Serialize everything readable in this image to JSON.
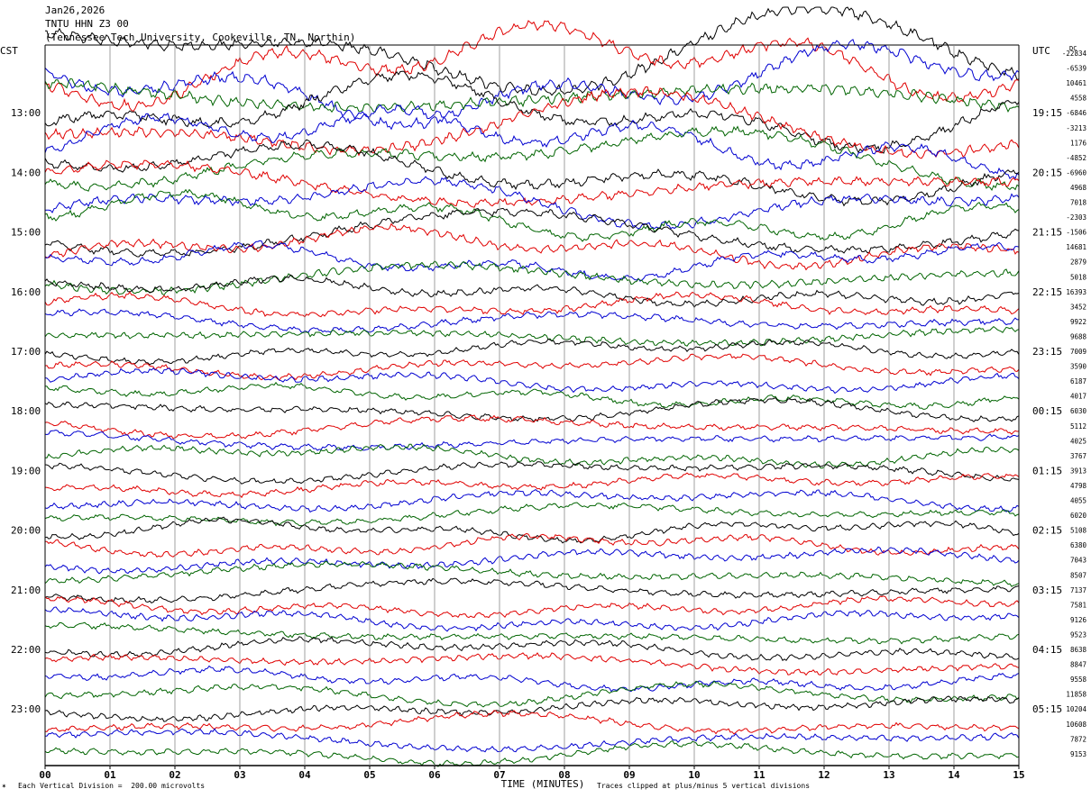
{
  "header": {
    "date": "Jan26,2026",
    "station": "TNTU HHN Z3 00",
    "location": "(Tennessee Tech University, Cookeville, TN, Northin)"
  },
  "left_timezone": "CST",
  "right_timezone": "UTC",
  "dc_label": "DC",
  "footer": {
    "scale": "Each Vertical Division =  200.00 microvolts",
    "clip": "Traces clipped at plus/minus 5 vertical divisions",
    "corner": "✶"
  },
  "colors": [
    "#000000",
    "#e00000",
    "#0000d0",
    "#006400"
  ],
  "chart_data": {
    "type": "line",
    "title": "",
    "xlabel": "TIME (MINUTES)",
    "ylabel": "",
    "xlim": [
      0,
      15
    ],
    "x_ticks": [
      "00",
      "01",
      "02",
      "03",
      "04",
      "05",
      "06",
      "07",
      "08",
      "09",
      "10",
      "11",
      "12",
      "13",
      "14",
      "15"
    ],
    "left_hour_labels": [
      "13:00",
      "14:00",
      "15:00",
      "16:00",
      "17:00",
      "18:00",
      "19:00",
      "20:00",
      "21:00",
      "22:00",
      "23:00"
    ],
    "right_hour_labels": [
      "19:15",
      "20:15",
      "21:15",
      "22:15",
      "23:15",
      "00:15",
      "01:15",
      "02:15",
      "03:15",
      "04:15",
      "05:15"
    ],
    "dc_offsets": [
      -22834,
      -6539,
      10461,
      4558,
      -6846,
      -3213,
      1176,
      -4852,
      -6960,
      4968,
      7018,
      -2303,
      -1506,
      14681,
      2879,
      5018,
      16393,
      3452,
      9922,
      9688,
      7009,
      3590,
      6187,
      4017,
      6030,
      5112,
      4025,
      3767,
      3913,
      4798,
      4055,
      6020,
      5108,
      6380,
      7043,
      8507,
      7137,
      7581,
      9126,
      9523,
      8638,
      8847,
      9558,
      11858,
      10204,
      10608,
      7872,
      9153
    ],
    "trace_interval_minutes": 15,
    "trace_count": 48,
    "grid": true,
    "clip_divisions": 5
  }
}
